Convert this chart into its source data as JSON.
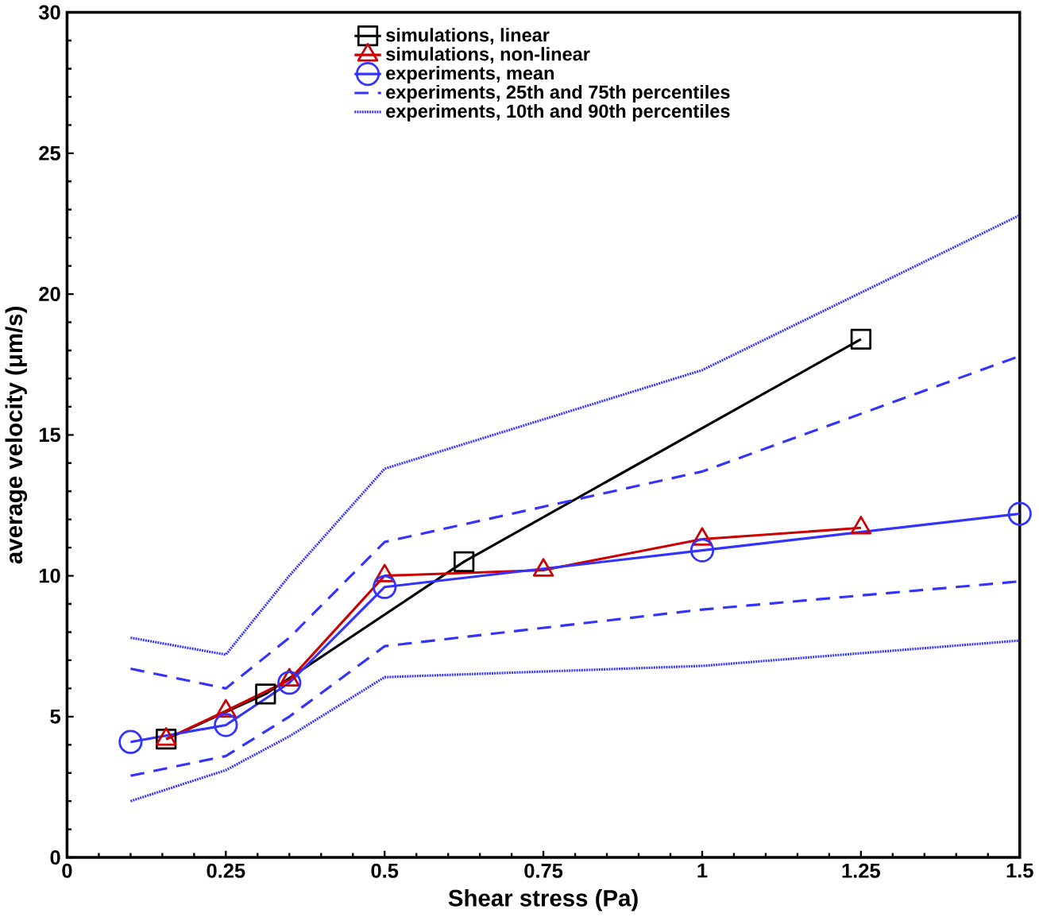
{
  "chart_data": {
    "type": "line",
    "xlabel": "Shear stress (Pa)",
    "ylabel": "average velocity (μm/s)",
    "xlim": [
      0,
      1.5
    ],
    "ylim": [
      0,
      30
    ],
    "xticks": [
      0,
      0.25,
      0.5,
      0.75,
      1,
      1.25,
      1.5
    ],
    "yticks": [
      0,
      5,
      10,
      15,
      20,
      25,
      30
    ],
    "legend": "top",
    "grid": false,
    "series": [
      {
        "name": "simulations, linear",
        "color": "#000000",
        "marker": "square",
        "line_style": "solid",
        "x": [
          0.156,
          0.3125,
          0.625,
          1.25
        ],
        "values": [
          4.2,
          5.8,
          10.5,
          18.4
        ]
      },
      {
        "name": "simulations, non-linear",
        "color": "#cc0000",
        "marker": "triangle",
        "line_style": "solid",
        "x": [
          0.156,
          0.25,
          0.35,
          0.5,
          0.75,
          1,
          1.25
        ],
        "values": [
          4.2,
          5.2,
          6.3,
          10.0,
          10.2,
          11.3,
          11.7
        ]
      },
      {
        "name": "experiments, mean",
        "color": "#3333ff",
        "marker": "circle",
        "line_style": "solid",
        "x": [
          0.1,
          0.25,
          0.35,
          0.5,
          1,
          1.5
        ],
        "values": [
          4.1,
          4.7,
          6.2,
          9.6,
          10.9,
          12.2
        ]
      },
      {
        "name": "experiments, 25th and 75th percentiles",
        "color": "#3333ff",
        "marker": "none",
        "line_style": "dashed",
        "x": [
          0.1,
          0.25,
          0.35,
          0.5,
          1,
          1.5
        ],
        "values": [
          6.7,
          6.0,
          7.8,
          11.2,
          13.7,
          17.8
        ]
      },
      {
        "color": "#3333ff",
        "marker": "none",
        "line_style": "dashed",
        "x": [
          0.1,
          0.25,
          0.35,
          0.5,
          1,
          1.5
        ],
        "values": [
          2.9,
          3.6,
          5.0,
          7.5,
          8.8,
          9.8
        ]
      },
      {
        "name": "experiments, 10th and 90th percentiles",
        "color": "#3333ff",
        "marker": "none",
        "line_style": "dotted",
        "x": [
          0.1,
          0.25,
          0.35,
          0.5,
          1,
          1.5
        ],
        "values": [
          7.8,
          7.2,
          10.0,
          13.8,
          17.3,
          22.8
        ]
      },
      {
        "color": "#3333ff",
        "marker": "none",
        "line_style": "dotted",
        "x": [
          0.1,
          0.25,
          0.35,
          0.5,
          1,
          1.5
        ],
        "values": [
          2.0,
          3.1,
          4.3,
          6.4,
          6.8,
          7.7
        ]
      }
    ]
  }
}
